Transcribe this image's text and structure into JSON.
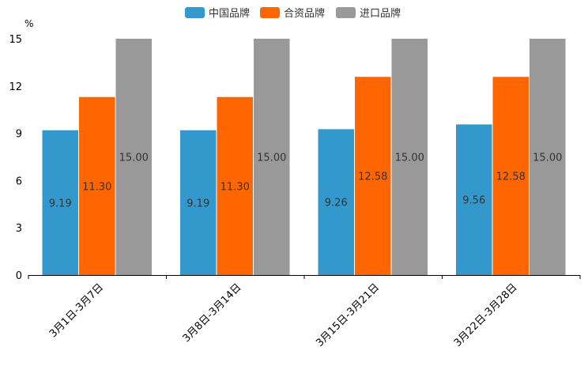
{
  "chart_data": {
    "type": "bar",
    "unit": "%",
    "categories": [
      "3月1日-3月7日",
      "3月8日-3月14日",
      "3月15日-3月21日",
      "3月22日-3月28日"
    ],
    "series": [
      {
        "name": "中国品牌",
        "color": "#3399cc",
        "values": [
          9.19,
          9.19,
          9.26,
          9.56
        ],
        "labels": [
          "9.19",
          "9.19",
          "9.26",
          "9.56"
        ]
      },
      {
        "name": "合资品牌",
        "color": "#ff6600",
        "values": [
          11.3,
          11.3,
          12.58,
          12.58
        ],
        "labels": [
          "11.30",
          "11.30",
          "12.58",
          "12.58"
        ]
      },
      {
        "name": "进口品牌",
        "color": "#999999",
        "values": [
          15.0,
          15.0,
          15.0,
          15.0
        ],
        "labels": [
          "15.00",
          "15.00",
          "15.00",
          "15.00"
        ]
      }
    ],
    "ylim": [
      0,
      15
    ],
    "yticks": [
      0,
      3,
      6,
      9,
      12,
      15
    ],
    "ytick_labels": [
      "0",
      "3",
      "6",
      "9",
      "12",
      "15"
    ],
    "legend_position": "top-center",
    "grid": false
  }
}
